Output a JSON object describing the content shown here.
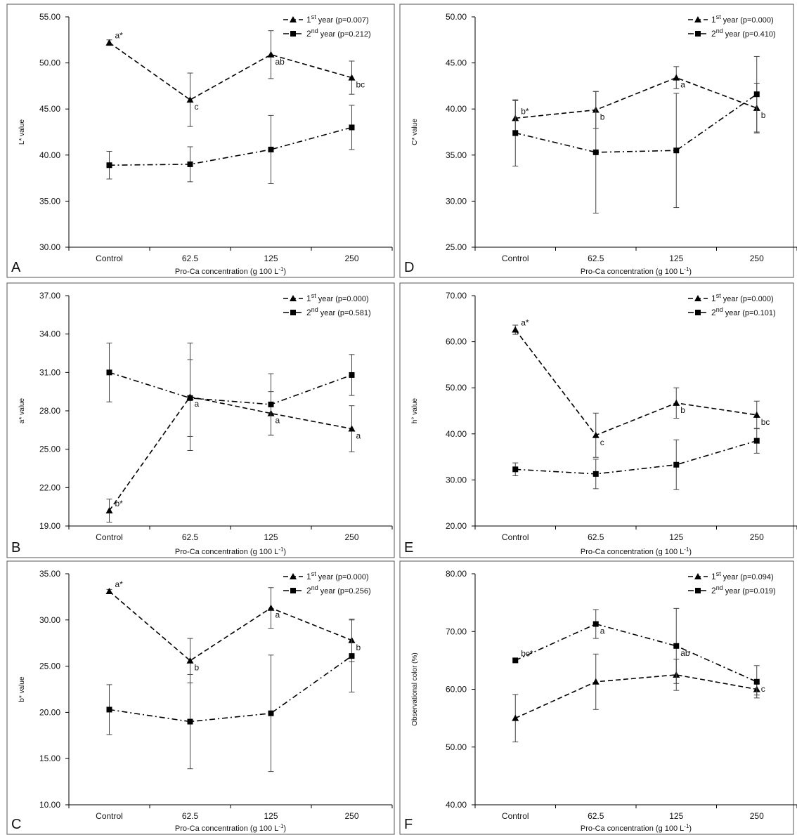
{
  "figure": {
    "xlabel": "Pro-Ca concentration (g 100 L",
    "xlabel_sup": "-1",
    "xlabel_end": ")",
    "legend_year1_sup": "st",
    "legend_year2_sup": "nd"
  },
  "chart_data": [
    {
      "panel": "A",
      "type": "line",
      "ylabel": "L* value",
      "ylim": [
        30,
        55
      ],
      "yticks": [
        30,
        35,
        40,
        45,
        50,
        55
      ],
      "categories": [
        "Control",
        "62.5",
        "125",
        "250"
      ],
      "series": [
        {
          "name": "1st year (p=0.007)",
          "legend_num": "1",
          "legend_rest": " year (p=0.007)",
          "marker": "triangle",
          "dash": "dashed",
          "values": [
            52.2,
            46.0,
            50.9,
            48.4
          ],
          "err": [
            0.3,
            2.9,
            2.6,
            1.8
          ],
          "labels": [
            "a*",
            "c",
            "ab",
            "bc"
          ]
        },
        {
          "name": "2nd year (p=0.212)",
          "legend_num": "2",
          "legend_rest": " year (p=0.212)",
          "marker": "square",
          "dash": "dashdot",
          "values": [
            38.9,
            39.0,
            40.6,
            43.0
          ],
          "err": [
            1.5,
            1.9,
            3.7,
            2.4
          ],
          "labels": []
        }
      ]
    },
    {
      "panel": "B",
      "type": "line",
      "ylabel": "a* value",
      "ylim": [
        19,
        37
      ],
      "yticks": [
        19,
        22,
        25,
        28,
        31,
        34,
        37
      ],
      "categories": [
        "Control",
        "62.5",
        "125",
        "250"
      ],
      "series": [
        {
          "name": "1st year (p=0.000)",
          "legend_num": "1",
          "legend_rest": " year (p=0.000)",
          "marker": "triangle",
          "dash": "dashed",
          "values": [
            20.2,
            29.1,
            27.8,
            26.6
          ],
          "err": [
            0.9,
            4.2,
            1.7,
            1.8
          ],
          "labels": [
            "b*",
            "a",
            "a",
            "a"
          ]
        },
        {
          "name": "2nd year (p=0.581)",
          "legend_num": "2",
          "legend_rest": " year (p=0.581)",
          "marker": "square",
          "dash": "dashdot",
          "values": [
            31.0,
            29.0,
            28.5,
            30.8
          ],
          "err": [
            2.3,
            3.0,
            2.4,
            1.6
          ],
          "labels": []
        }
      ]
    },
    {
      "panel": "C",
      "type": "line",
      "ylabel": "b* value",
      "ylim": [
        10,
        35
      ],
      "yticks": [
        10,
        15,
        20,
        25,
        30,
        35
      ],
      "categories": [
        "Control",
        "62.5",
        "125",
        "250"
      ],
      "series": [
        {
          "name": "1st year (p=0.000)",
          "legend_num": "1",
          "legend_rest": " year (p=0.000)",
          "marker": "triangle",
          "dash": "dashed",
          "values": [
            33.1,
            25.6,
            31.3,
            27.8
          ],
          "err": [
            0.2,
            2.4,
            2.2,
            2.3
          ],
          "labels": [
            "a*",
            "b",
            "a",
            "b"
          ]
        },
        {
          "name": "2nd year (p=0.256)",
          "legend_num": "2",
          "legend_rest": " year (p=0.256)",
          "marker": "square",
          "dash": "dashdot",
          "values": [
            20.3,
            19.0,
            19.9,
            26.1
          ],
          "err": [
            2.7,
            5.1,
            6.3,
            3.9
          ],
          "labels": []
        }
      ]
    },
    {
      "panel": "D",
      "type": "line",
      "ylabel": "C* value",
      "ylim": [
        25,
        50
      ],
      "yticks": [
        25,
        30,
        35,
        40,
        45,
        50
      ],
      "categories": [
        "Control",
        "62.5",
        "125",
        "250"
      ],
      "series": [
        {
          "name": "1st year (p=0.000)",
          "legend_num": "1",
          "legend_rest": " year (p=0.000)",
          "marker": "triangle",
          "dash": "dashed",
          "values": [
            39.0,
            39.9,
            43.4,
            40.1
          ],
          "err": [
            1.9,
            2.0,
            1.2,
            2.7
          ],
          "labels": [
            "b*",
            "b",
            "a",
            "b"
          ]
        },
        {
          "name": "2nd year (p=0.410)",
          "legend_num": "2",
          "legend_rest": " year (p=0.410)",
          "marker": "square",
          "dash": "dashdot",
          "values": [
            37.4,
            35.3,
            35.5,
            41.6
          ],
          "err": [
            3.6,
            6.6,
            6.2,
            4.1
          ],
          "labels": []
        }
      ]
    },
    {
      "panel": "E",
      "type": "line",
      "ylabel": "h° value",
      "ylim": [
        20,
        70
      ],
      "yticks": [
        20,
        30,
        40,
        50,
        60,
        70
      ],
      "categories": [
        "Control",
        "62.5",
        "125",
        "250"
      ],
      "series": [
        {
          "name": "1st year (p=0.000)",
          "legend_num": "1",
          "legend_rest": " year (p=0.000)",
          "marker": "triangle",
          "dash": "dashed",
          "values": [
            62.6,
            39.7,
            46.7,
            44.1
          ],
          "err": [
            1.0,
            4.8,
            3.3,
            3.0
          ],
          "labels": [
            "a*",
            "c",
            "b",
            "bc"
          ]
        },
        {
          "name": "2nd year (p=0.101)",
          "legend_num": "2",
          "legend_rest": " year (p=0.101)",
          "marker": "square",
          "dash": "dashdot",
          "values": [
            32.3,
            31.3,
            33.3,
            38.5
          ],
          "err": [
            1.4,
            3.2,
            5.4,
            2.7
          ],
          "labels": []
        }
      ]
    },
    {
      "panel": "F",
      "type": "line",
      "ylabel": "Observational color (%)",
      "ylim": [
        40,
        80
      ],
      "yticks": [
        40,
        50,
        60,
        70,
        80
      ],
      "categories": [
        "Control",
        "62.5",
        "125",
        "250"
      ],
      "series": [
        {
          "name": "1st year (p=0.094)",
          "legend_num": "1",
          "legend_rest": " year (p=0.094)",
          "marker": "triangle",
          "dash": "dashed",
          "values": [
            55.0,
            61.3,
            62.5,
            60.0
          ],
          "err": [
            4.1,
            4.8,
            2.7,
            1.0
          ],
          "labels": []
        },
        {
          "name": "2nd year (p=0.019)",
          "legend_num": "2",
          "legend_rest": " year (p=0.019)",
          "marker": "square",
          "dash": "dashdot",
          "values": [
            65.0,
            71.3,
            67.5,
            61.3
          ],
          "err": [
            0.3,
            2.5,
            6.5,
            2.8
          ],
          "labels": [
            "bc*",
            "a",
            "ab",
            "c"
          ]
        }
      ]
    }
  ]
}
